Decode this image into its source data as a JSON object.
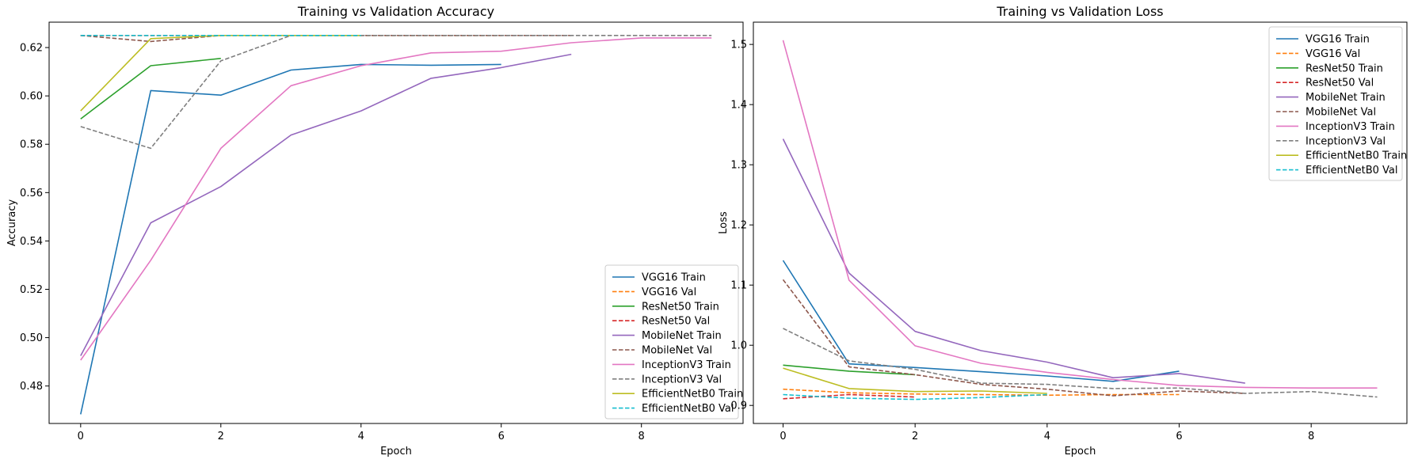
{
  "chart_data": [
    {
      "type": "line",
      "title": "Training vs Validation Accuracy",
      "xlabel": "Epoch",
      "ylabel": "Accuracy",
      "xlim": [
        -0.45,
        9.45
      ],
      "ylim": [
        0.4645,
        0.6305
      ],
      "xticks": [
        0,
        2,
        4,
        6,
        8
      ],
      "yticks": [
        0.48,
        0.5,
        0.52,
        0.54,
        0.56,
        0.58,
        0.6,
        0.62
      ],
      "ytick_labels": [
        "0.48",
        "0.50",
        "0.52",
        "0.54",
        "0.56",
        "0.58",
        "0.60",
        "0.62"
      ],
      "legend_position": "lower right",
      "grid": false,
      "series": [
        {
          "name": "VGG16 Train",
          "color": "#1f77b4",
          "dash": false,
          "x": [
            0,
            1,
            2,
            3,
            4,
            5,
            6
          ],
          "y": [
            0.4683,
            0.6022,
            0.6003,
            0.6107,
            0.613,
            0.6127,
            0.613
          ]
        },
        {
          "name": "VGG16 Val",
          "color": "#ff7f0e",
          "dash": true,
          "x": [
            0,
            1,
            2,
            3,
            4,
            5,
            6
          ],
          "y": [
            0.625,
            0.625,
            0.625,
            0.625,
            0.625,
            0.625,
            0.625
          ]
        },
        {
          "name": "ResNet50 Train",
          "color": "#2ca02c",
          "dash": false,
          "x": [
            0,
            1,
            2
          ],
          "y": [
            0.5905,
            0.6125,
            0.6155
          ]
        },
        {
          "name": "ResNet50 Val",
          "color": "#d62728",
          "dash": true,
          "x": [
            0,
            1,
            2
          ],
          "y": [
            0.625,
            0.625,
            0.625
          ]
        },
        {
          "name": "MobileNet Train",
          "color": "#9467bd",
          "dash": false,
          "x": [
            0,
            1,
            2,
            3,
            4,
            5,
            6,
            7
          ],
          "y": [
            0.4925,
            0.5475,
            0.5625,
            0.5838,
            0.5938,
            0.6073,
            0.6117,
            0.6172
          ]
        },
        {
          "name": "MobileNet Val",
          "color": "#8c564b",
          "dash": true,
          "x": [
            0,
            1,
            2,
            3,
            4,
            5,
            6,
            7
          ],
          "y": [
            0.625,
            0.6225,
            0.625,
            0.625,
            0.625,
            0.625,
            0.625,
            0.625
          ]
        },
        {
          "name": "InceptionV3 Train",
          "color": "#e377c2",
          "dash": false,
          "x": [
            0,
            1,
            2,
            3,
            4,
            5,
            6,
            7,
            8,
            9
          ],
          "y": [
            0.4907,
            0.532,
            0.5783,
            0.6042,
            0.6125,
            0.6178,
            0.6185,
            0.622,
            0.624,
            0.624
          ]
        },
        {
          "name": "InceptionV3 Val",
          "color": "#7f7f7f",
          "dash": true,
          "x": [
            0,
            1,
            2,
            3,
            4,
            5,
            6,
            7,
            8,
            9
          ],
          "y": [
            0.5873,
            0.5783,
            0.6145,
            0.625,
            0.625,
            0.625,
            0.625,
            0.625,
            0.625,
            0.625
          ]
        },
        {
          "name": "EfficientNetB0 Train",
          "color": "#bcbd22",
          "dash": false,
          "x": [
            0,
            1,
            2,
            3,
            4
          ],
          "y": [
            0.5938,
            0.6237,
            0.625,
            0.625,
            0.625
          ]
        },
        {
          "name": "EfficientNetB0 Val",
          "color": "#17becf",
          "dash": true,
          "x": [
            0,
            1,
            2,
            3,
            4
          ],
          "y": [
            0.625,
            0.625,
            0.625,
            0.625,
            0.625
          ]
        }
      ]
    },
    {
      "type": "line",
      "title": "Training vs Validation Loss",
      "xlabel": "Epoch",
      "ylabel": "Loss",
      "xlim": [
        -0.45,
        9.45
      ],
      "ylim": [
        0.87,
        1.537
      ],
      "xticks": [
        0,
        2,
        4,
        6,
        8
      ],
      "yticks": [
        0.9,
        1.0,
        1.1,
        1.2,
        1.3,
        1.4,
        1.5
      ],
      "ytick_labels": [
        "0.9",
        "1.0",
        "1.1",
        "1.2",
        "1.3",
        "1.4",
        "1.5"
      ],
      "legend_position": "upper right",
      "grid": false,
      "series": [
        {
          "name": "VGG16 Train",
          "color": "#1f77b4",
          "dash": false,
          "x": [
            0,
            1,
            2,
            3,
            4,
            5,
            6
          ],
          "y": [
            1.141,
            0.969,
            0.963,
            0.956,
            0.949,
            0.94,
            0.957
          ]
        },
        {
          "name": "VGG16 Val",
          "color": "#ff7f0e",
          "dash": true,
          "x": [
            0,
            1,
            2,
            3,
            4,
            5,
            6
          ],
          "y": [
            0.927,
            0.921,
            0.919,
            0.918,
            0.917,
            0.918,
            0.918
          ]
        },
        {
          "name": "ResNet50 Train",
          "color": "#2ca02c",
          "dash": false,
          "x": [
            0,
            1,
            2
          ],
          "y": [
            0.967,
            0.957,
            0.951
          ]
        },
        {
          "name": "ResNet50 Val",
          "color": "#d62728",
          "dash": true,
          "x": [
            0,
            1,
            2
          ],
          "y": [
            0.911,
            0.918,
            0.914
          ]
        },
        {
          "name": "MobileNet Train",
          "color": "#9467bd",
          "dash": false,
          "x": [
            0,
            1,
            2,
            3,
            4,
            5,
            6,
            7
          ],
          "y": [
            1.343,
            1.12,
            1.023,
            0.991,
            0.972,
            0.946,
            0.953,
            0.937
          ]
        },
        {
          "name": "MobileNet Val",
          "color": "#8c564b",
          "dash": true,
          "x": [
            0,
            1,
            2,
            3,
            4,
            5,
            6,
            7
          ],
          "y": [
            1.109,
            0.964,
            0.951,
            0.935,
            0.927,
            0.916,
            0.924,
            0.92
          ]
        },
        {
          "name": "InceptionV3 Train",
          "color": "#e377c2",
          "dash": false,
          "x": [
            0,
            1,
            2,
            3,
            4,
            5,
            6,
            7,
            8,
            9
          ],
          "y": [
            1.507,
            1.108,
            0.999,
            0.97,
            0.955,
            0.943,
            0.933,
            0.93,
            0.929,
            0.929
          ]
        },
        {
          "name": "InceptionV3 Val",
          "color": "#7f7f7f",
          "dash": true,
          "x": [
            0,
            1,
            2,
            3,
            4,
            5,
            6,
            7,
            8,
            9
          ],
          "y": [
            1.028,
            0.974,
            0.96,
            0.937,
            0.935,
            0.928,
            0.929,
            0.92,
            0.923,
            0.914
          ]
        },
        {
          "name": "EfficientNetB0 Train",
          "color": "#bcbd22",
          "dash": false,
          "x": [
            0,
            1,
            2,
            3,
            4
          ],
          "y": [
            0.962,
            0.928,
            0.923,
            0.924,
            0.92
          ]
        },
        {
          "name": "EfficientNetB0 Val",
          "color": "#17becf",
          "dash": true,
          "x": [
            0,
            1,
            2,
            3,
            4
          ],
          "y": [
            0.918,
            0.912,
            0.91,
            0.913,
            0.918
          ]
        }
      ]
    }
  ]
}
